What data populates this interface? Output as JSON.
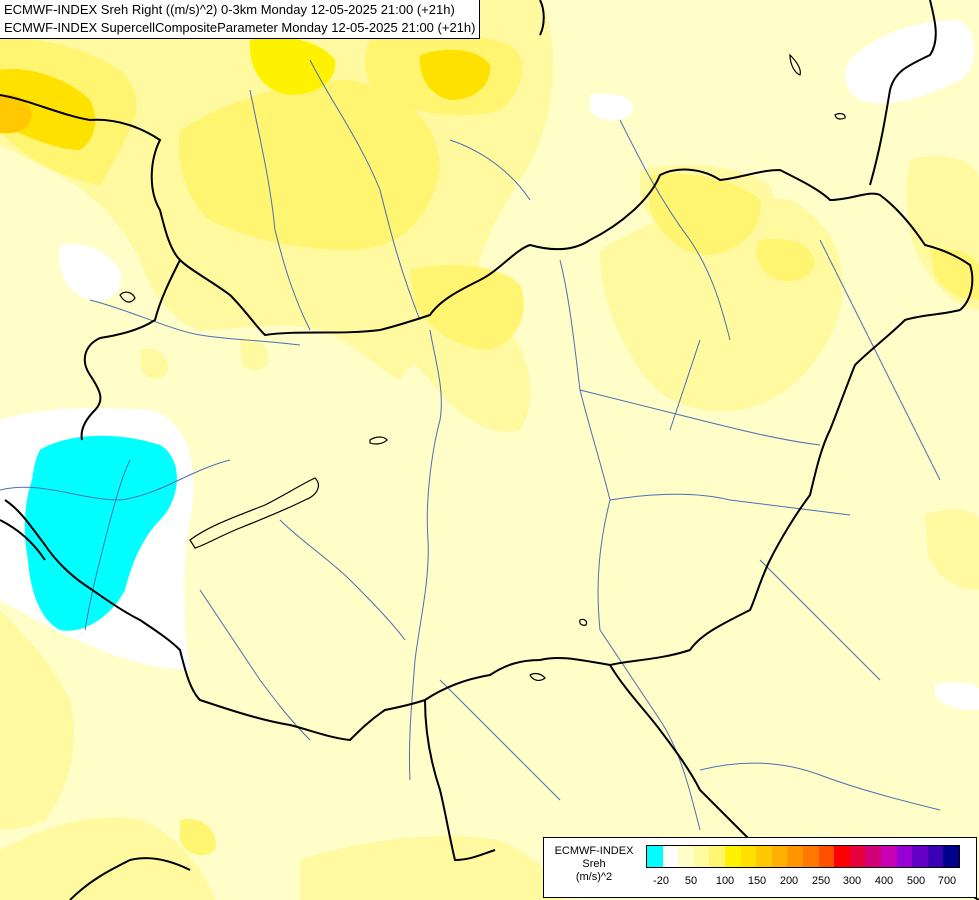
{
  "header": {
    "line1": "ECMWF-INDEX Sreh Right ((m/s)^2) 0-3km Monday 12-05-2025 21:00 (+21h)",
    "line2": "ECMWF-INDEX SupercellCompositeParameter Monday 12-05-2025 21:00 (+21h)"
  },
  "legend": {
    "title_line1": "ECMWF-INDEX",
    "title_line2": "Sreh",
    "title_line3": "(m/s)^2",
    "colors": [
      "#00ffff",
      "#ffffff",
      "#fffdc8",
      "#fff9a0",
      "#fff570",
      "#fff200",
      "#ffe100",
      "#ffc800",
      "#ffb000",
      "#ff9600",
      "#ff7800",
      "#ff5000",
      "#ff0000",
      "#e6003c",
      "#d20078",
      "#c800b4",
      "#9600d2",
      "#6400c8",
      "#3c00b4",
      "#00008c"
    ],
    "ticks": [
      "-20",
      "50",
      "100",
      "150",
      "200",
      "250",
      "300",
      "400",
      "500",
      "700"
    ]
  },
  "colors": {
    "background": "#fffdc8",
    "light_yellow": "#fff9a0",
    "yellow": "#fff570",
    "deep_yellow": "#ffe100",
    "orange": "#ffc800",
    "cyan": "#00ffff",
    "white": "#ffffff",
    "border": "#000000",
    "river": "#4a6fb5"
  }
}
